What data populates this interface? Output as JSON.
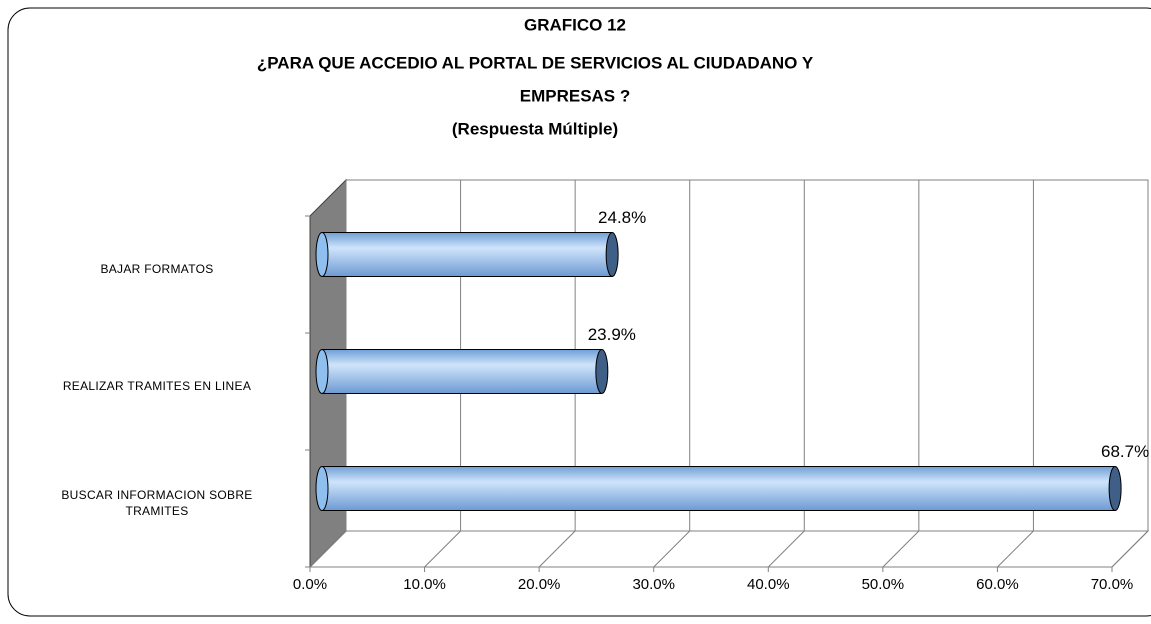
{
  "chart_data": {
    "type": "bar",
    "orientation": "horizontal",
    "title": [
      "GRAFICO 12",
      "¿PARA QUE ACCEDIO AL PORTAL DE SERVICIOS AL CIUDADANO Y",
      "EMPRESAS ?"
    ],
    "subtitle": "(Respuesta Múltiple)",
    "categories": [
      "BAJAR FORMATOS",
      "REALIZAR TRAMITES EN LINEA",
      "BUSCAR INFORMACION SOBRE TRAMITES"
    ],
    "values": [
      24.8,
      23.9,
      68.7
    ],
    "value_labels": [
      "24.8%",
      "23.9%",
      "68.7%"
    ],
    "color": "#8fbfee",
    "xlim": [
      0,
      70
    ],
    "xticks": [
      {
        "value": 0,
        "label": "0.0%"
      },
      {
        "value": 10,
        "label": "10.0%"
      },
      {
        "value": 20,
        "label": "20.0%"
      },
      {
        "value": 30,
        "label": "30.0%"
      },
      {
        "value": 40,
        "label": "40.0%"
      },
      {
        "value": 50,
        "label": "50.0%"
      },
      {
        "value": 60,
        "label": "60.0%"
      },
      {
        "value": 70,
        "label": "70.0%"
      }
    ],
    "grid": true
  }
}
